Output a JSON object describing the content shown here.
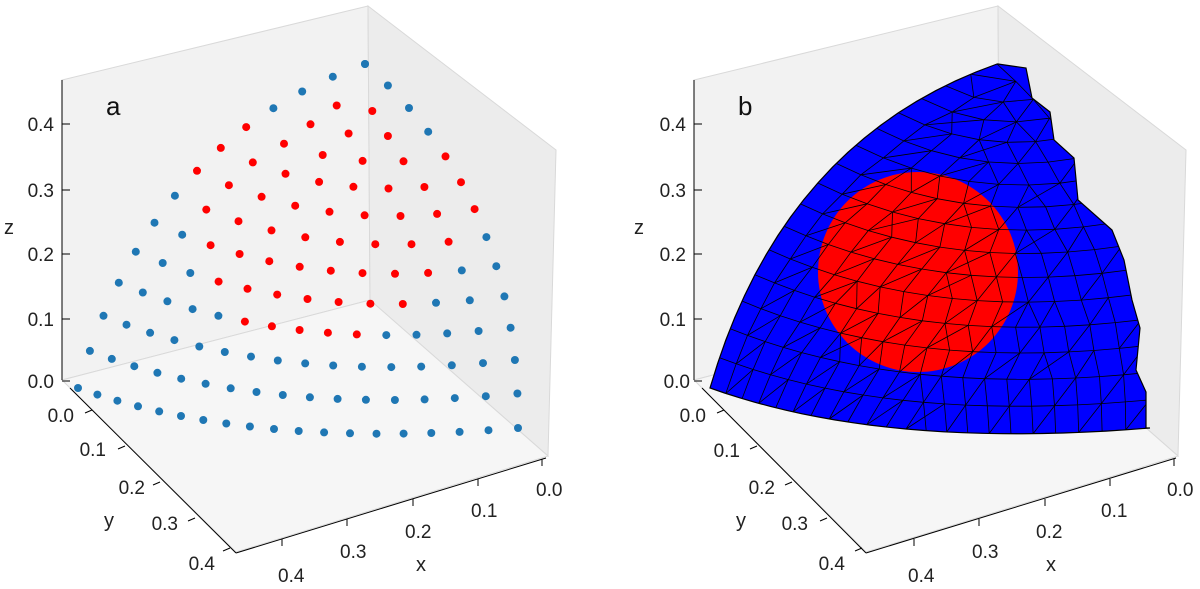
{
  "chart_data": [
    {
      "type": "scatter",
      "panel_label": "a",
      "description_of_marks": "nodes of octant sphere surface; red = inner circular patch",
      "xlabel": "x",
      "ylabel": "y",
      "zlabel": "z",
      "xticks": [
        "0.0",
        "0.1",
        "0.2",
        "0.3",
        "0.4"
      ],
      "yticks": [
        "0.0",
        "0.1",
        "0.2",
        "0.3",
        "0.4"
      ],
      "zticks": [
        "0.0",
        "0.1",
        "0.2",
        "0.3",
        "0.4"
      ],
      "xlim": [
        0,
        0.45
      ],
      "ylim": [
        0,
        0.45
      ],
      "zlim": [
        0,
        0.45
      ],
      "colors": {
        "outer": "#1f77b4",
        "inner": "#ff0000"
      }
    },
    {
      "type": "surface",
      "panel_label": "b",
      "xlabel": "x",
      "ylabel": "y",
      "zlabel": "z",
      "xticks": [
        "0.0",
        "0.1",
        "0.2",
        "0.3",
        "0.4"
      ],
      "yticks": [
        "0.0",
        "0.1",
        "0.2",
        "0.3",
        "0.4"
      ],
      "zticks": [
        "0.0",
        "0.1",
        "0.2",
        "0.3",
        "0.4"
      ],
      "xlim": [
        0,
        0.45
      ],
      "ylim": [
        0,
        0.45
      ],
      "zlim": [
        0,
        0.45
      ],
      "colors": {
        "outer": "#0000ff",
        "inner": "#ff0000",
        "edges": "#000000"
      }
    }
  ]
}
